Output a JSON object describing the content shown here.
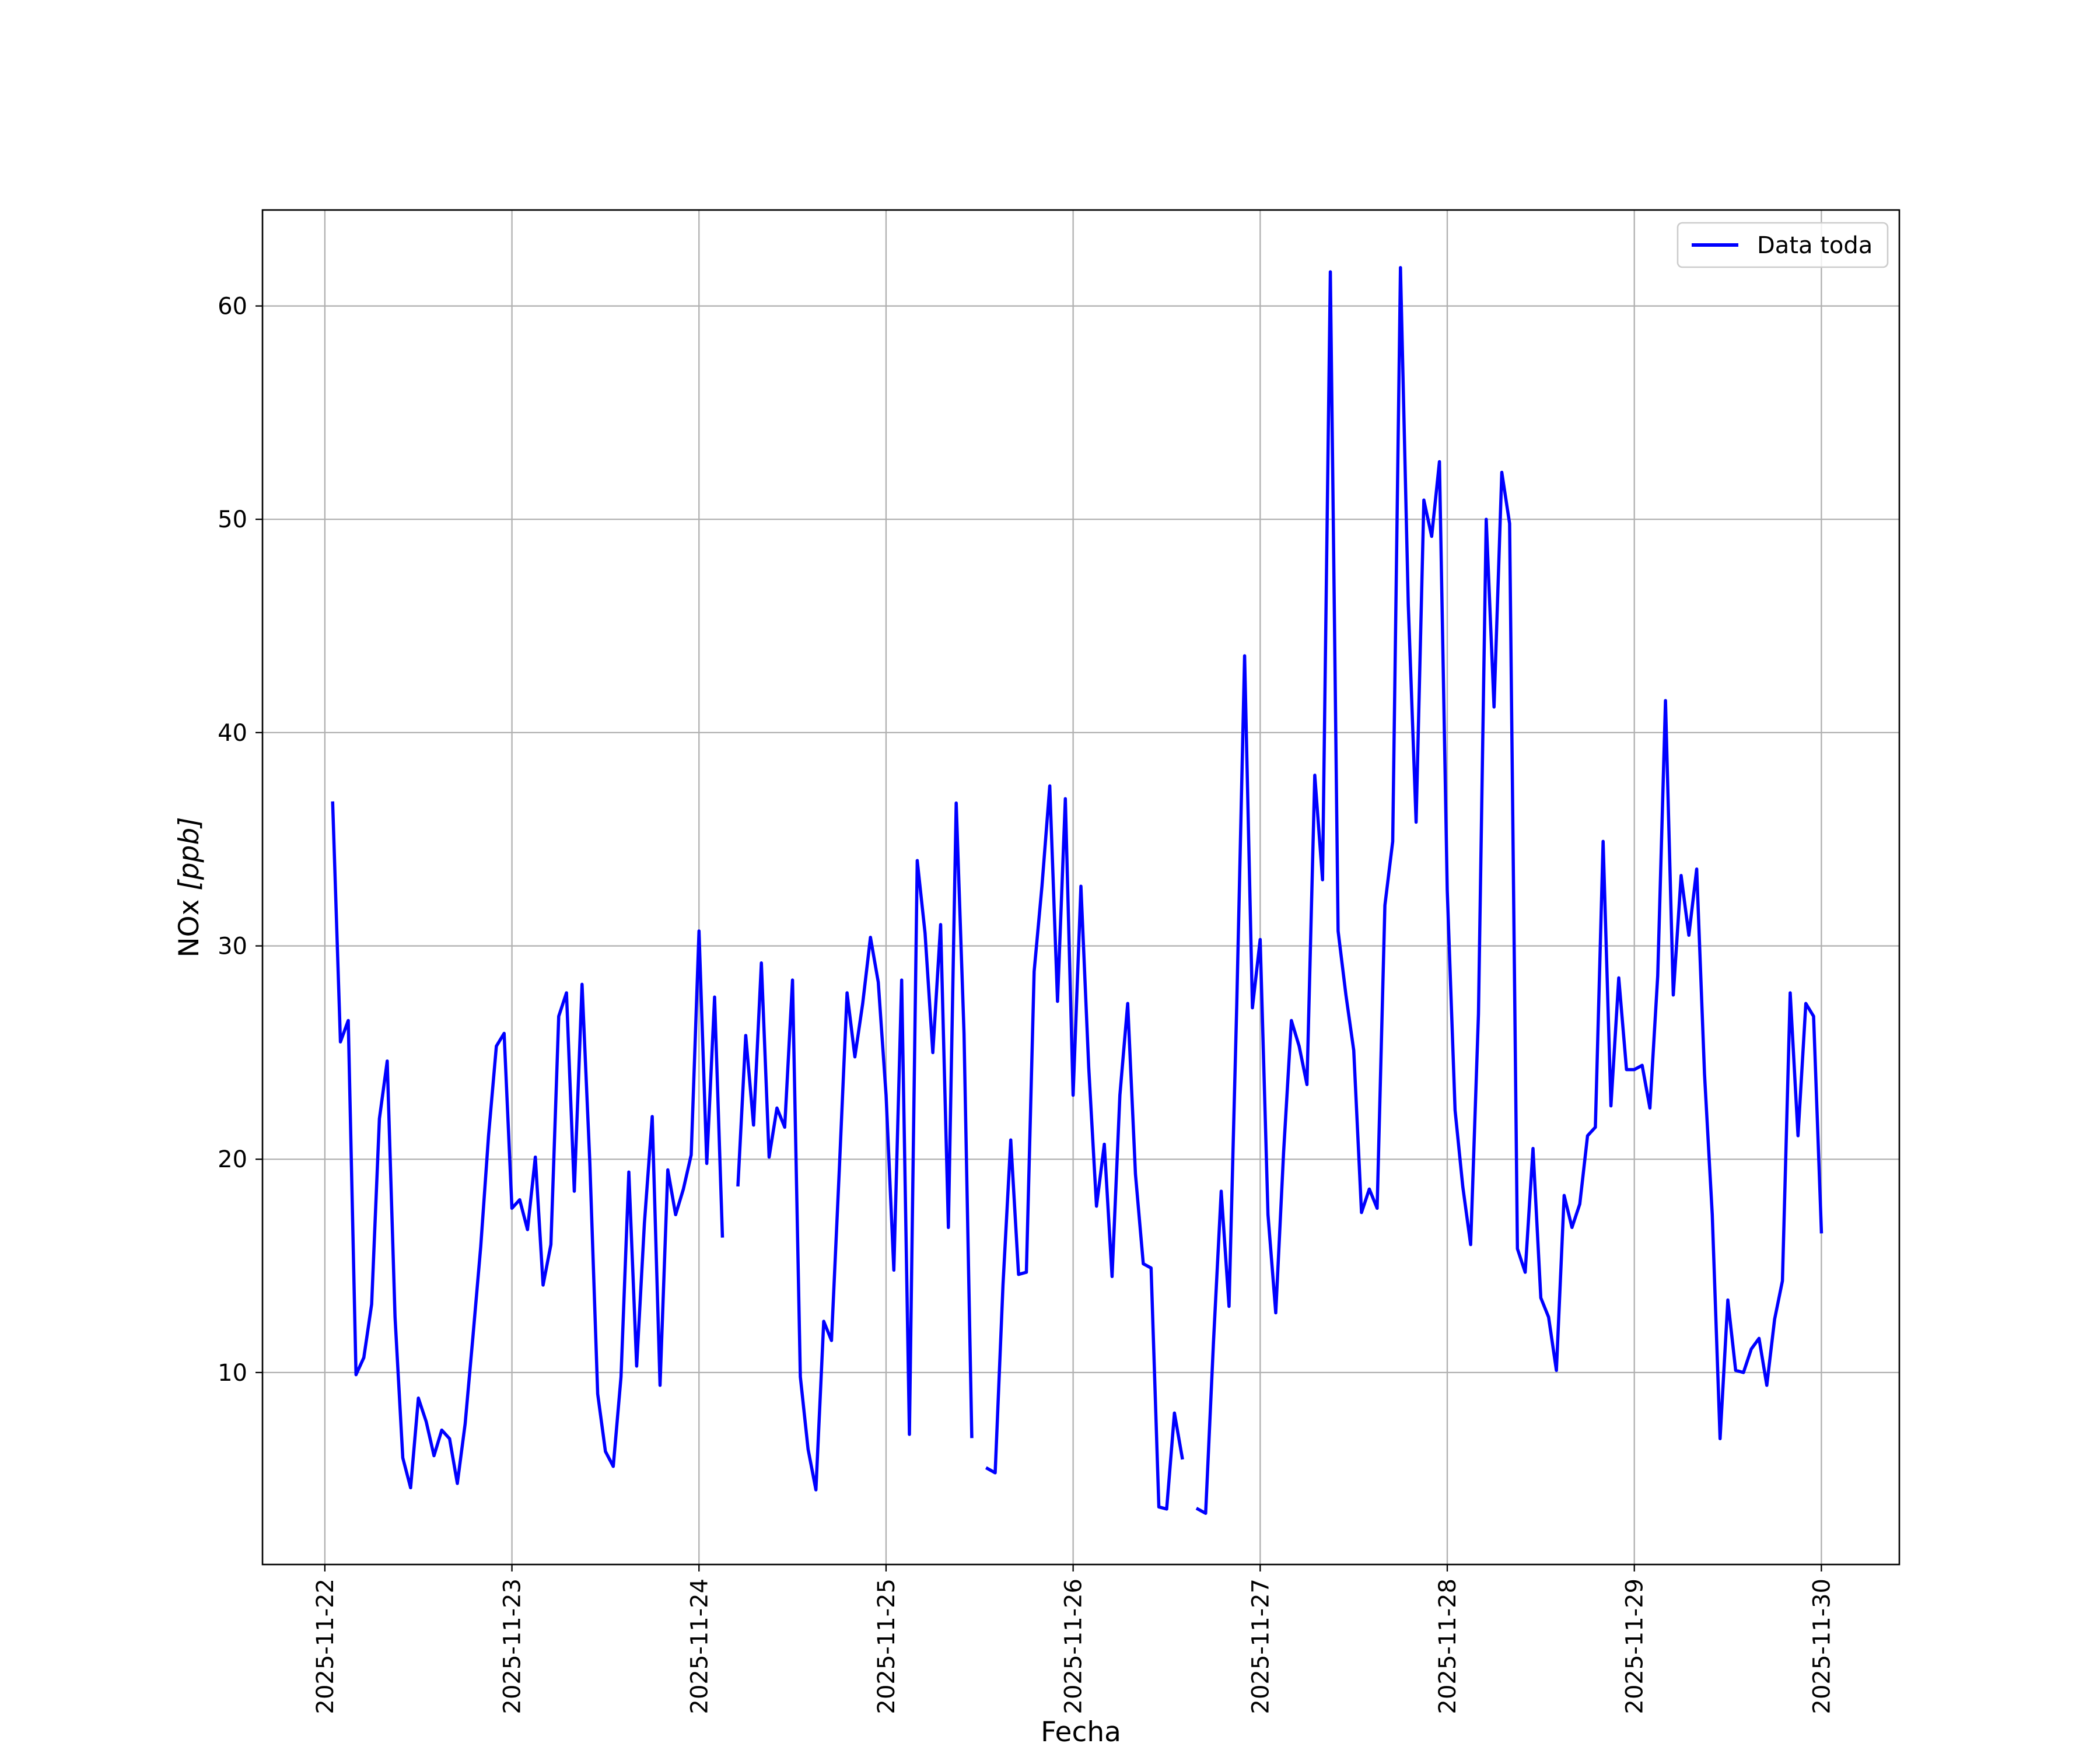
{
  "chart_data": {
    "type": "line",
    "title": "",
    "xlabel": "Fecha",
    "ylabel": "NOx [ppb]",
    "ylabel_parts": {
      "main": "NOx ",
      "unit": "[ppb]"
    },
    "grid": true,
    "legend_placement": "top-right",
    "series_color": "#0000ff",
    "xlim": [
      "2025-11-21T16:00",
      "2025-11-30T10:00"
    ],
    "ylim": [
      1,
      64.5
    ],
    "x_ticks": [
      "2025-11-22",
      "2025-11-23",
      "2025-11-24",
      "2025-11-25",
      "2025-11-26",
      "2025-11-27",
      "2025-11-28",
      "2025-11-29",
      "2025-11-30"
    ],
    "y_ticks": [
      10,
      20,
      30,
      40,
      50,
      60
    ],
    "series": [
      {
        "name": "Data toda",
        "points": [
          [
            "2025-11-22T01:00",
            36.7
          ],
          [
            "2025-11-22T02:00",
            25.5
          ],
          [
            "2025-11-22T03:00",
            26.5
          ],
          [
            "2025-11-22T04:00",
            9.9
          ],
          [
            "2025-11-22T05:00",
            10.7
          ],
          [
            "2025-11-22T06:00",
            13.2
          ],
          [
            "2025-11-22T07:00",
            21.9
          ],
          [
            "2025-11-22T08:00",
            24.6
          ],
          [
            "2025-11-22T09:00",
            12.6
          ],
          [
            "2025-11-22T10:00",
            6.0
          ],
          [
            "2025-11-22T11:00",
            4.6
          ],
          [
            "2025-11-22T12:00",
            8.8
          ],
          [
            "2025-11-22T13:00",
            7.7
          ],
          [
            "2025-11-22T14:00",
            6.1
          ],
          [
            "2025-11-22T15:00",
            7.3
          ],
          [
            "2025-11-22T16:00",
            6.9
          ],
          [
            "2025-11-22T17:00",
            4.8
          ],
          [
            "2025-11-22T18:00",
            7.6
          ],
          [
            "2025-11-22T19:00",
            11.7
          ],
          [
            "2025-11-22T20:00",
            15.9
          ],
          [
            "2025-11-22T21:00",
            21.1
          ],
          [
            "2025-11-22T22:00",
            25.3
          ],
          [
            "2025-11-22T23:00",
            25.9
          ],
          [
            "2025-11-23T00:00",
            17.7
          ],
          [
            "2025-11-23T01:00",
            18.1
          ],
          [
            "2025-11-23T02:00",
            16.7
          ],
          [
            "2025-11-23T03:00",
            20.1
          ],
          [
            "2025-11-23T04:00",
            14.1
          ],
          [
            "2025-11-23T05:00",
            16.0
          ],
          [
            "2025-11-23T06:00",
            26.7
          ],
          [
            "2025-11-23T07:00",
            27.8
          ],
          [
            "2025-11-23T08:00",
            18.5
          ],
          [
            "2025-11-23T09:00",
            28.2
          ],
          [
            "2025-11-23T10:00",
            19.8
          ],
          [
            "2025-11-23T11:00",
            9.0
          ],
          [
            "2025-11-23T12:00",
            6.3
          ],
          [
            "2025-11-23T13:00",
            5.6
          ],
          [
            "2025-11-23T14:00",
            9.8
          ],
          [
            "2025-11-23T15:00",
            19.4
          ],
          [
            "2025-11-23T16:00",
            10.3
          ],
          [
            "2025-11-23T17:00",
            17.0
          ],
          [
            "2025-11-23T18:00",
            22.0
          ],
          [
            "2025-11-23T19:00",
            9.4
          ],
          [
            "2025-11-23T20:00",
            19.5
          ],
          [
            "2025-11-23T21:00",
            17.4
          ],
          [
            "2025-11-23T22:00",
            18.6
          ],
          [
            "2025-11-23T23:00",
            20.2
          ],
          [
            "2025-11-24T00:00",
            30.7
          ],
          [
            "2025-11-24T01:00",
            19.8
          ],
          [
            "2025-11-24T02:00",
            27.6
          ],
          [
            "2025-11-24T03:00",
            16.4
          ],
          [
            "2025-11-24T05:00",
            18.8
          ],
          [
            "2025-11-24T06:00",
            25.8
          ],
          [
            "2025-11-24T07:00",
            21.6
          ],
          [
            "2025-11-24T08:00",
            29.2
          ],
          [
            "2025-11-24T09:00",
            20.1
          ],
          [
            "2025-11-24T10:00",
            22.4
          ],
          [
            "2025-11-24T11:00",
            21.5
          ],
          [
            "2025-11-24T12:00",
            28.4
          ],
          [
            "2025-11-24T13:00",
            9.8
          ],
          [
            "2025-11-24T14:00",
            6.4
          ],
          [
            "2025-11-24T15:00",
            4.5
          ],
          [
            "2025-11-24T16:00",
            12.4
          ],
          [
            "2025-11-24T17:00",
            11.5
          ],
          [
            "2025-11-24T18:00",
            19.5
          ],
          [
            "2025-11-24T19:00",
            27.8
          ],
          [
            "2025-11-24T20:00",
            24.8
          ],
          [
            "2025-11-24T21:00",
            27.3
          ],
          [
            "2025-11-24T22:00",
            30.4
          ],
          [
            "2025-11-24T23:00",
            28.3
          ],
          [
            "2025-11-25T00:00",
            23.0
          ],
          [
            "2025-11-25T01:00",
            14.8
          ],
          [
            "2025-11-25T02:00",
            28.4
          ],
          [
            "2025-11-25T03:00",
            7.1
          ],
          [
            "2025-11-25T04:00",
            34.0
          ],
          [
            "2025-11-25T05:00",
            30.6
          ],
          [
            "2025-11-25T06:00",
            25.0
          ],
          [
            "2025-11-25T07:00",
            31.0
          ],
          [
            "2025-11-25T08:00",
            16.8
          ],
          [
            "2025-11-25T09:00",
            36.7
          ],
          [
            "2025-11-25T10:00",
            25.9
          ],
          [
            "2025-11-25T11:00",
            7.0
          ],
          [
            "2025-11-25T13:00",
            5.5
          ],
          [
            "2025-11-25T14:00",
            5.3
          ],
          [
            "2025-11-25T15:00",
            14.1
          ],
          [
            "2025-11-25T16:00",
            20.9
          ],
          [
            "2025-11-25T17:00",
            14.6
          ],
          [
            "2025-11-25T18:00",
            14.7
          ],
          [
            "2025-11-25T19:00",
            28.8
          ],
          [
            "2025-11-25T20:00",
            32.8
          ],
          [
            "2025-11-25T21:00",
            37.5
          ],
          [
            "2025-11-25T22:00",
            27.4
          ],
          [
            "2025-11-25T23:00",
            36.9
          ],
          [
            "2025-11-26T00:00",
            23.0
          ],
          [
            "2025-11-26T01:00",
            32.8
          ],
          [
            "2025-11-26T02:00",
            24.3
          ],
          [
            "2025-11-26T03:00",
            17.8
          ],
          [
            "2025-11-26T04:00",
            20.7
          ],
          [
            "2025-11-26T05:00",
            14.5
          ],
          [
            "2025-11-26T06:00",
            23.0
          ],
          [
            "2025-11-26T07:00",
            27.3
          ],
          [
            "2025-11-26T08:00",
            19.3
          ],
          [
            "2025-11-26T09:00",
            15.1
          ],
          [
            "2025-11-26T10:00",
            14.9
          ],
          [
            "2025-11-26T11:00",
            3.7
          ],
          [
            "2025-11-26T12:00",
            3.6
          ],
          [
            "2025-11-26T13:00",
            8.1
          ],
          [
            "2025-11-26T14:00",
            6.0
          ],
          [
            "2025-11-26T16:00",
            3.6
          ],
          [
            "2025-11-26T17:00",
            3.4
          ],
          [
            "2025-11-26T18:00",
            11.4
          ],
          [
            "2025-11-26T19:00",
            18.5
          ],
          [
            "2025-11-26T20:00",
            13.1
          ],
          [
            "2025-11-26T21:00",
            27.3
          ],
          [
            "2025-11-26T22:00",
            43.6
          ],
          [
            "2025-11-26T23:00",
            27.1
          ],
          [
            "2025-11-27T00:00",
            30.3
          ],
          [
            "2025-11-27T01:00",
            17.4
          ],
          [
            "2025-11-27T02:00",
            12.8
          ],
          [
            "2025-11-27T03:00",
            20.3
          ],
          [
            "2025-11-27T04:00",
            26.5
          ],
          [
            "2025-11-27T05:00",
            25.3
          ],
          [
            "2025-11-27T06:00",
            23.5
          ],
          [
            "2025-11-27T07:00",
            38.0
          ],
          [
            "2025-11-27T08:00",
            33.1
          ],
          [
            "2025-11-27T09:00",
            61.6
          ],
          [
            "2025-11-27T10:00",
            30.7
          ],
          [
            "2025-11-27T11:00",
            27.7
          ],
          [
            "2025-11-27T12:00",
            25.1
          ],
          [
            "2025-11-27T13:00",
            17.5
          ],
          [
            "2025-11-27T14:00",
            18.6
          ],
          [
            "2025-11-27T15:00",
            17.7
          ],
          [
            "2025-11-27T16:00",
            31.9
          ],
          [
            "2025-11-27T17:00",
            34.9
          ],
          [
            "2025-11-27T18:00",
            61.8
          ],
          [
            "2025-11-27T19:00",
            46.0
          ],
          [
            "2025-11-27T20:00",
            35.8
          ],
          [
            "2025-11-27T21:00",
            50.9
          ],
          [
            "2025-11-27T22:00",
            49.2
          ],
          [
            "2025-11-27T23:00",
            52.7
          ],
          [
            "2025-11-28T00:00",
            32.6
          ],
          [
            "2025-11-28T01:00",
            22.3
          ],
          [
            "2025-11-28T02:00",
            18.7
          ],
          [
            "2025-11-28T03:00",
            16.0
          ],
          [
            "2025-11-28T04:00",
            26.8
          ],
          [
            "2025-11-28T05:00",
            50.0
          ],
          [
            "2025-11-28T06:00",
            41.2
          ],
          [
            "2025-11-28T07:00",
            52.2
          ],
          [
            "2025-11-28T08:00",
            49.8
          ],
          [
            "2025-11-28T09:00",
            15.8
          ],
          [
            "2025-11-28T10:00",
            14.7
          ],
          [
            "2025-11-28T11:00",
            20.5
          ],
          [
            "2025-11-28T12:00",
            13.5
          ],
          [
            "2025-11-28T13:00",
            12.6
          ],
          [
            "2025-11-28T14:00",
            10.1
          ],
          [
            "2025-11-28T15:00",
            18.3
          ],
          [
            "2025-11-28T16:00",
            16.8
          ],
          [
            "2025-11-28T17:00",
            17.9
          ],
          [
            "2025-11-28T18:00",
            21.1
          ],
          [
            "2025-11-28T19:00",
            21.5
          ],
          [
            "2025-11-28T20:00",
            34.9
          ],
          [
            "2025-11-28T21:00",
            22.5
          ],
          [
            "2025-11-28T22:00",
            28.5
          ],
          [
            "2025-11-28T23:00",
            24.2
          ],
          [
            "2025-11-29T00:00",
            24.2
          ],
          [
            "2025-11-29T01:00",
            24.4
          ],
          [
            "2025-11-29T02:00",
            22.4
          ],
          [
            "2025-11-29T03:00",
            28.6
          ],
          [
            "2025-11-29T04:00",
            41.5
          ],
          [
            "2025-11-29T05:00",
            27.7
          ],
          [
            "2025-11-29T06:00",
            33.3
          ],
          [
            "2025-11-29T07:00",
            30.5
          ],
          [
            "2025-11-29T08:00",
            33.6
          ],
          [
            "2025-11-29T09:00",
            24.0
          ],
          [
            "2025-11-29T10:00",
            17.4
          ],
          [
            "2025-11-29T11:00",
            6.9
          ],
          [
            "2025-11-29T12:00",
            13.4
          ],
          [
            "2025-11-29T13:00",
            10.1
          ],
          [
            "2025-11-29T14:00",
            10.0
          ],
          [
            "2025-11-29T15:00",
            11.1
          ],
          [
            "2025-11-29T16:00",
            11.6
          ],
          [
            "2025-11-29T17:00",
            9.4
          ],
          [
            "2025-11-29T18:00",
            12.5
          ],
          [
            "2025-11-29T19:00",
            14.3
          ],
          [
            "2025-11-29T20:00",
            27.8
          ],
          [
            "2025-11-29T21:00",
            21.1
          ],
          [
            "2025-11-29T22:00",
            27.3
          ],
          [
            "2025-11-29T23:00",
            26.7
          ],
          [
            "2025-11-30T00:00",
            16.6
          ]
        ]
      }
    ]
  }
}
